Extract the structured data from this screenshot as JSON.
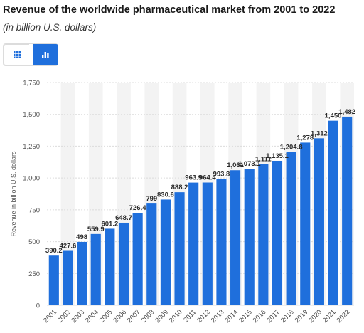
{
  "header": {
    "title": "Revenue of the worldwide pharmaceutical market from 2001 to 2022",
    "subtitle": "(in billion U.S. dollars)"
  },
  "view_toggle": {
    "table_icon": "grid-icon",
    "chart_icon": "bar-chart-icon",
    "active": "chart",
    "active_color": "#1f6fdc"
  },
  "chart_data": {
    "type": "bar",
    "categories": [
      "2001",
      "2002",
      "2003",
      "2004",
      "2005",
      "2006",
      "2007",
      "2008",
      "2009",
      "2010",
      "2011",
      "2012",
      "2013",
      "2014",
      "2015",
      "2016",
      "2017",
      "2018",
      "2019",
      "2020",
      "2021",
      "2022"
    ],
    "values": [
      390.2,
      427.6,
      498,
      559.9,
      601.2,
      648.7,
      726.4,
      799,
      830.6,
      888.2,
      963.9,
      964.4,
      993.8,
      1061,
      1073.1,
      1111,
      1135.1,
      1204.8,
      1278,
      1312,
      1450,
      1482
    ],
    "data_labels": [
      "390.2",
      "427.6",
      "498",
      "559.9",
      "601.2",
      "648.7",
      "726.4",
      "799",
      "830.6",
      "888.2",
      "963.9",
      "964.4",
      "993.8",
      "1,061",
      "1,073.1",
      "1,111",
      "1,135.1",
      "1,204.8",
      "1,278",
      "1,312",
      "1,450",
      "1,482"
    ],
    "title": "Revenue of the worldwide pharmaceutical market from 2001 to 2022",
    "xlabel": "",
    "ylabel": "Revenue in billion U.S. dollars",
    "ylim": [
      0,
      1750
    ],
    "yticks": [
      0,
      250,
      500,
      750,
      1000,
      1250,
      1500,
      1750
    ],
    "ytick_labels": [
      "0",
      "250",
      "500",
      "750",
      "1,000",
      "1,250",
      "1,500",
      "1,750"
    ],
    "grid": true,
    "bar_color": "#1f6fdc",
    "band_color": "#f3f3f3"
  }
}
